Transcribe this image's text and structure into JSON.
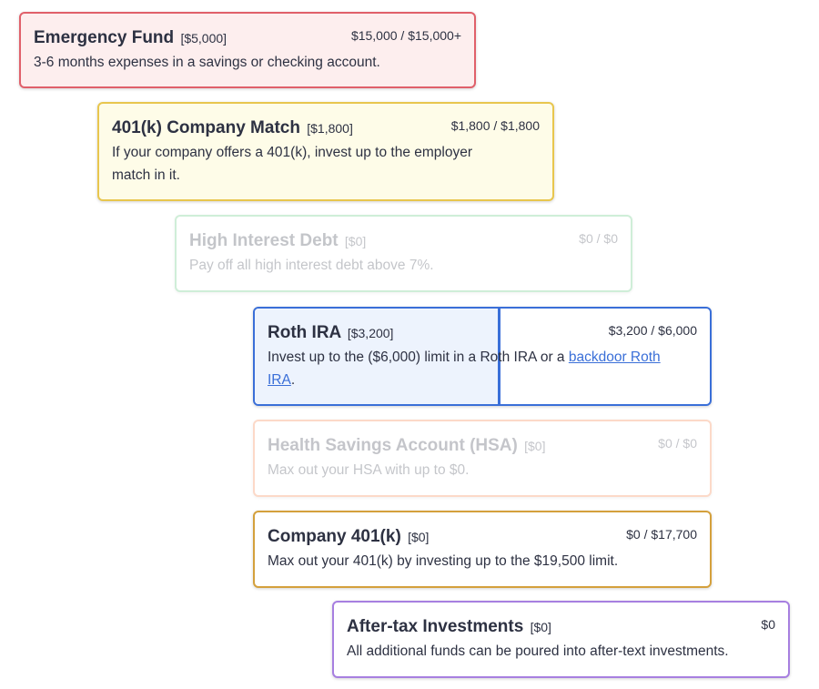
{
  "colors": {
    "emergency": "#e0606a",
    "match": "#e8c64e",
    "debt": "#9fdcb1",
    "roth": "#3a6fd8",
    "hsa": "#f6a47a",
    "company401k": "#d4a03c",
    "aftertax": "#a77fe0"
  },
  "cards": {
    "emergency": {
      "title": "Emergency Fund",
      "allocation": "[$5,000]",
      "amount": "$15,000 / $15,000+",
      "description": "3-6 months expenses in a savings or checking account."
    },
    "match": {
      "title": "401(k) Company Match",
      "allocation": "[$1,800]",
      "amount": "$1,800 / $1,800",
      "description": "If your company offers a 401(k), invest up to the employer match in it."
    },
    "debt": {
      "title": "High Interest Debt",
      "allocation": "[$0]",
      "amount": "$0 / $0",
      "description": "Pay off all high interest debt above 7%."
    },
    "roth": {
      "title": "Roth IRA",
      "allocation": "[$3,200]",
      "amount": "$3,200 / $6,000",
      "description_pre": "Invest up to the ($6,000) limit in a Roth IRA or a ",
      "link": "backdoor Roth IRA",
      "description_post": ".",
      "progress_fraction": 0.5333
    },
    "hsa": {
      "title": "Health Savings Account (HSA)",
      "allocation": "[$0]",
      "amount": "$0 / $0",
      "description": "Max out your HSA with up to $0."
    },
    "company401k": {
      "title": "Company 401(k)",
      "allocation": "[$0]",
      "amount": "$0 / $17,700",
      "description": "Max out your 401(k) by investing up to the $19,500 limit."
    },
    "aftertax": {
      "title": "After-tax Investments",
      "allocation": "[$0]",
      "amount": "$0",
      "description": "All additional funds can be poured into after-text investments."
    }
  }
}
